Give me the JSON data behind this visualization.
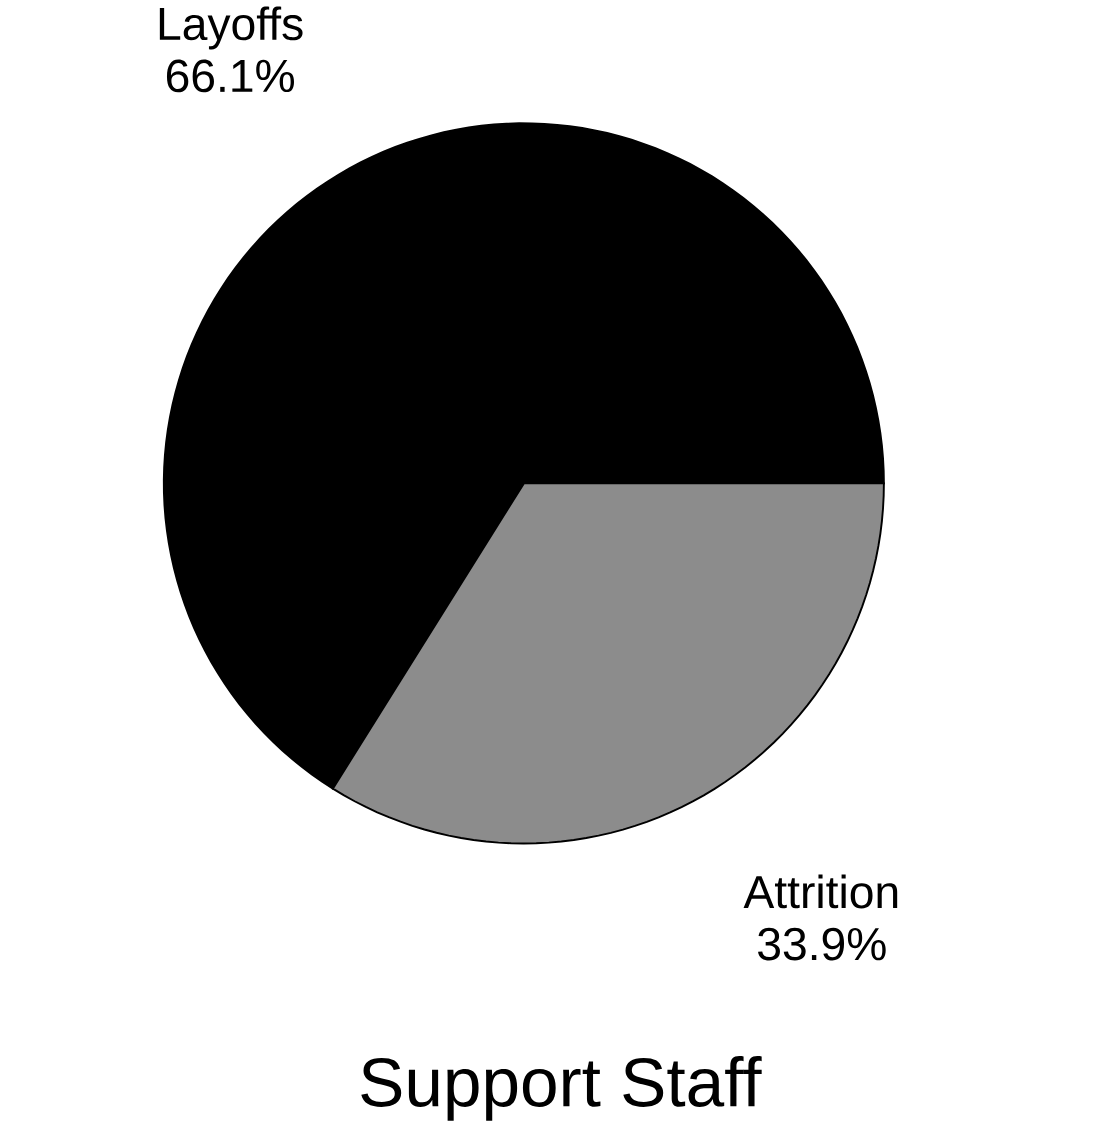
{
  "chart_data": {
    "type": "pie",
    "title": "Support Staff",
    "categories": [
      "Layoffs",
      "Attrition"
    ],
    "values": [
      66.1,
      33.9
    ],
    "value_labels": [
      "66.1%",
      "33.9%"
    ],
    "colors": [
      "#000000",
      "#8c8c8c"
    ]
  }
}
